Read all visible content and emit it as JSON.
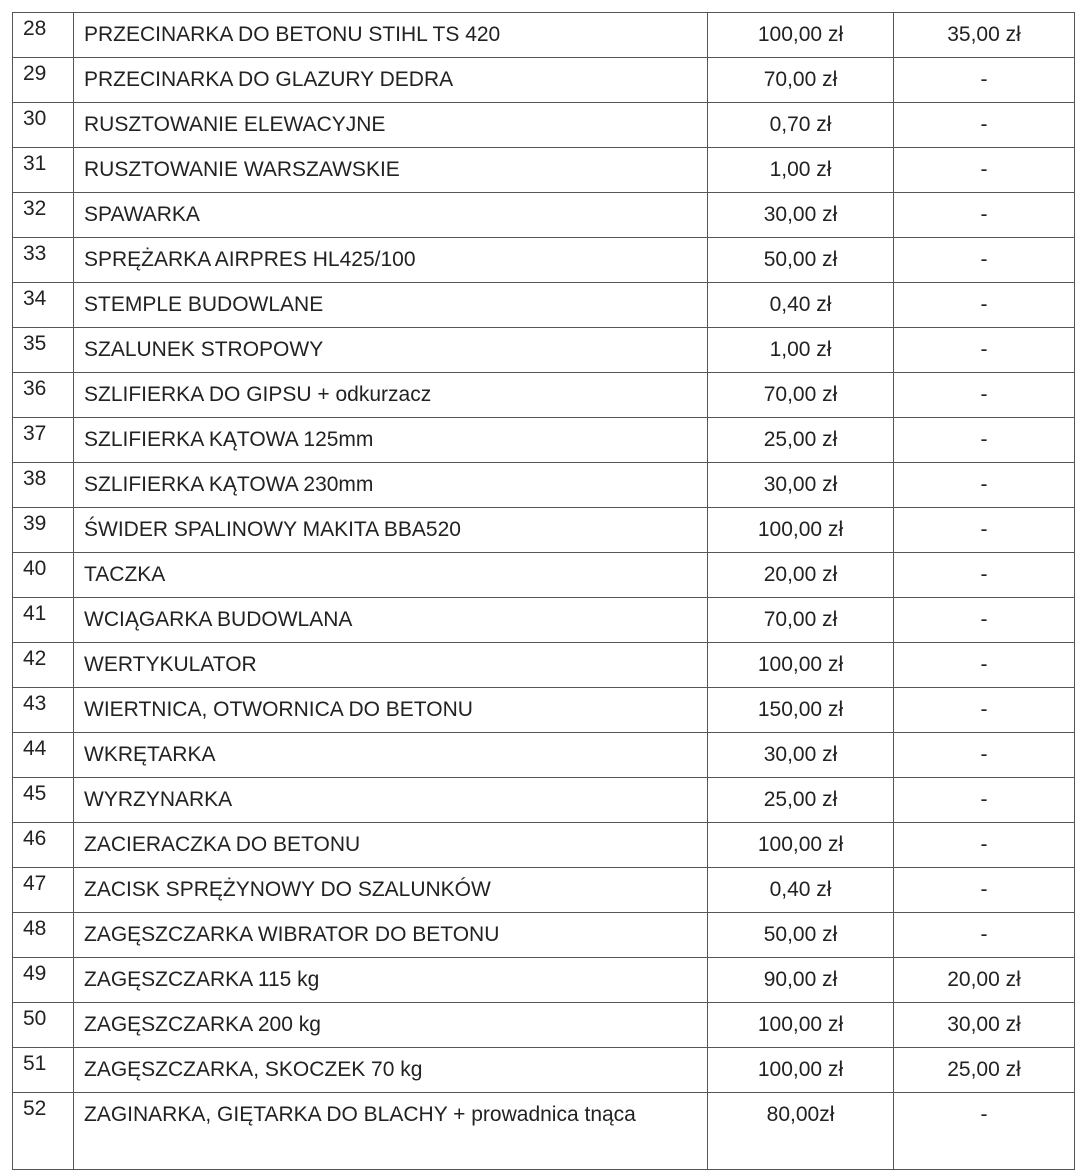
{
  "table": {
    "rows": [
      [
        "28",
        "PRZECINARKA DO BETONU STIHL TS 420",
        "100,00 zł",
        "35,00 zł"
      ],
      [
        "29",
        "PRZECINARKA DO GLAZURY DEDRA",
        "70,00 zł",
        "-"
      ],
      [
        "30",
        "RUSZTOWANIE ELEWACYJNE",
        "0,70 zł",
        "-"
      ],
      [
        "31",
        "RUSZTOWANIE WARSZAWSKIE",
        "1,00 zł",
        "-"
      ],
      [
        "32",
        "SPAWARKA",
        "30,00 zł",
        "-"
      ],
      [
        "33",
        "SPRĘŻARKA AIRPRES HL425/100",
        "50,00 zł",
        "-"
      ],
      [
        "34",
        "STEMPLE BUDOWLANE",
        "0,40 zł",
        "-"
      ],
      [
        "35",
        "SZALUNEK STROPOWY",
        "1,00 zł",
        "-"
      ],
      [
        "36",
        "SZLIFIERKA DO GIPSU + odkurzacz",
        "70,00 zł",
        "-"
      ],
      [
        "37",
        "SZLIFIERKA KĄTOWA 125mm",
        "25,00 zł",
        "-"
      ],
      [
        "38",
        "SZLIFIERKA KĄTOWA 230mm",
        "30,00 zł",
        "-"
      ],
      [
        "39",
        "ŚWIDER SPALINOWY MAKITA BBA520",
        "100,00 zł",
        "-"
      ],
      [
        "40",
        "TACZKA",
        "20,00 zł",
        "-"
      ],
      [
        "41",
        "WCIĄGARKA BUDOWLANA",
        "70,00 zł",
        "-"
      ],
      [
        "42",
        "WERTYKULATOR",
        "100,00 zł",
        "-"
      ],
      [
        "43",
        "WIERTNICA, OTWORNICA DO BETONU",
        "150,00 zł",
        "-"
      ],
      [
        "44",
        "WKRĘTARKA",
        "30,00 zł",
        "-"
      ],
      [
        "45",
        "WYRZYNARKA",
        "25,00 zł",
        "-"
      ],
      [
        "46",
        "ZACIERACZKA DO BETONU",
        "100,00 zł",
        "-"
      ],
      [
        "47",
        "ZACISK SPRĘŻYNOWY DO SZALUNKÓW",
        "0,40 zł",
        "-"
      ],
      [
        "48",
        "ZAGĘSZCZARKA WIBRATOR DO BETONU",
        "50,00 zł",
        "-"
      ],
      [
        "49",
        "ZAGĘSZCZARKA 115 kg",
        "90,00 zł",
        "20,00 zł"
      ],
      [
        "50",
        "ZAGĘSZCZARKA 200 kg",
        "100,00 zł",
        "30,00 zł"
      ],
      [
        "51",
        "ZAGĘSZCZARKA, SKOCZEK 70 kg",
        "100,00 zł",
        "25,00 zł"
      ],
      [
        "52",
        "ZAGINARKA, GIĘTARKA DO BLACHY + prowadnica tnąca",
        "80,00zł",
        "-"
      ]
    ]
  }
}
